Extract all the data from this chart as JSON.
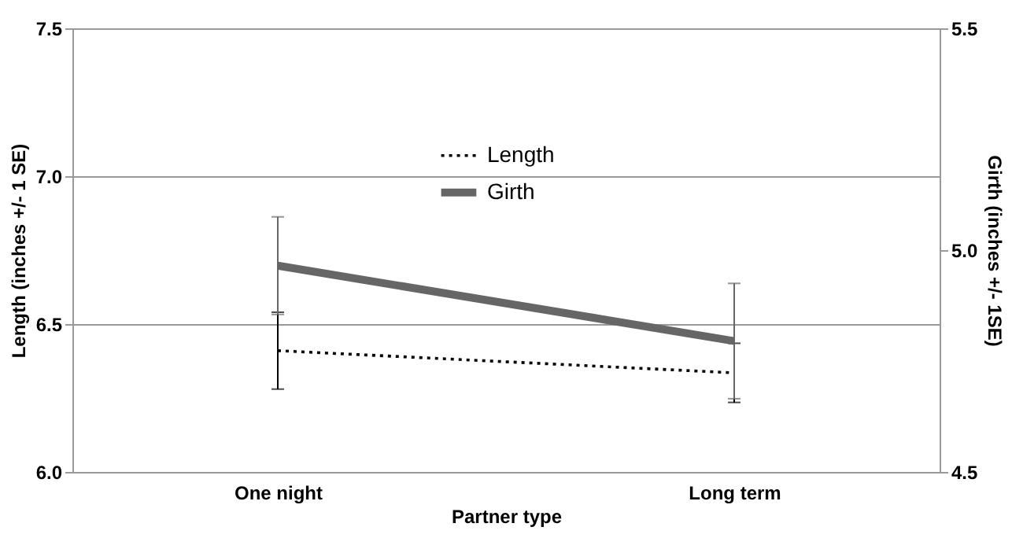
{
  "chart_data": {
    "type": "line",
    "categories": [
      "One night",
      "Long term"
    ],
    "xlabel": "Partner type",
    "ylabel": "Length (inches +/- 1 SE)",
    "y2label": "Girth (inches +/- 1SE)",
    "ylim": [
      6.0,
      7.5
    ],
    "yticks": [
      {
        "value": 6,
        "label": "6.0"
      },
      6.5,
      {
        "value": 7,
        "label": "7.0"
      },
      7.5
    ],
    "y2lim": [
      4.5,
      5.5
    ],
    "y2ticks": [
      4.5,
      {
        "value": 5,
        "label": "5.0"
      },
      5.5
    ],
    "grid": "y",
    "legend": "top",
    "marker": "none",
    "series": [
      {
        "name": "Length",
        "color": "#000000",
        "line_style": "dotted",
        "values": [
          6.41,
          6.335
        ],
        "errors": [
          0.13,
          0.1
        ]
      },
      {
        "name": "Girth",
        "color": "#666666",
        "line_style": "solid",
        "axis": "y2",
        "values": [
          4.965,
          4.795
        ],
        "errors": [
          0.11,
          0.13
        ]
      }
    ]
  }
}
